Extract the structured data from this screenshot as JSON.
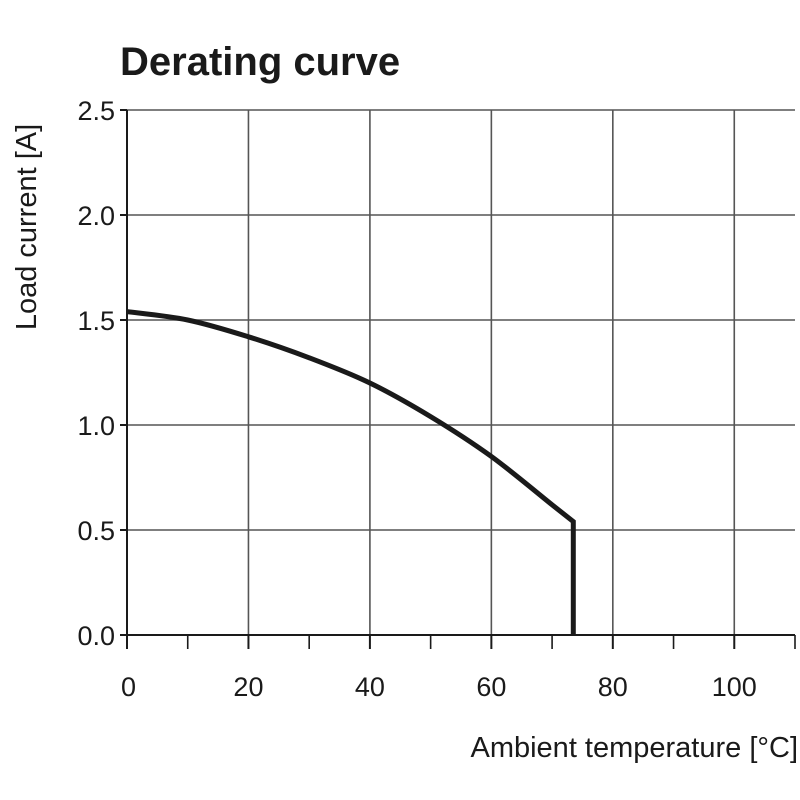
{
  "chart_data": {
    "type": "line",
    "title": "Derating curve",
    "xlabel": "Ambient temperature [°C]",
    "ylabel": "Load current [A]",
    "xlim": [
      0,
      110
    ],
    "ylim": [
      0,
      2.5
    ],
    "x_ticks": [
      0,
      20,
      40,
      60,
      80,
      100
    ],
    "x_tick_labels": [
      "0",
      "20",
      "40",
      "60",
      "80",
      "100"
    ],
    "x_minor_ticks": [
      10,
      30,
      50,
      70,
      90
    ],
    "y_ticks": [
      0,
      0.5,
      1.0,
      1.5,
      2.0,
      2.5
    ],
    "y_tick_labels": [
      "0.0",
      "0.5",
      "1.0",
      "1.5",
      "2.0",
      "2.5"
    ],
    "grid": true,
    "line_color": "#1a1a1a",
    "series": [
      {
        "x": [
          0,
          10,
          20,
          30,
          40,
          50,
          60,
          70,
          73.5,
          73.5
        ],
        "y": [
          1.54,
          1.5,
          1.42,
          1.32,
          1.2,
          1.04,
          0.85,
          0.62,
          0.54,
          0.0
        ]
      }
    ]
  }
}
